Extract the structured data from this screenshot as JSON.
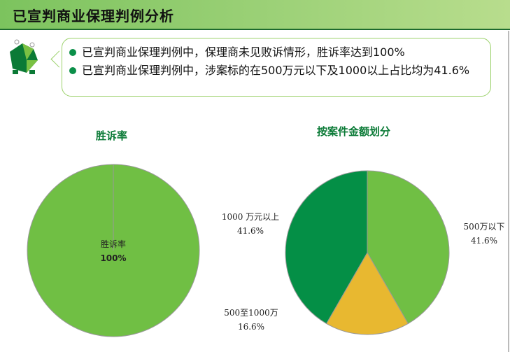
{
  "header": {
    "title": "已宣判商业保理判例分析"
  },
  "bullets": [
    "已宣判商业保理判例中，保理商未见败诉情形，胜诉率达到100%",
    "已宣判商业保理判例中，涉案标的在500万元以下及1000以上占比均为41.6%"
  ],
  "chart_data": [
    {
      "type": "pie",
      "title": "胜诉率",
      "slices": [
        {
          "label": "胜诉率",
          "value": 100,
          "display": "100%",
          "color": "#70bf44"
        }
      ]
    },
    {
      "type": "pie",
      "title": "按案件金额划分",
      "slices": [
        {
          "label": "500万以下",
          "value": 41.6,
          "display": "41.6%",
          "color": "#70bf44"
        },
        {
          "label": "500至1000万",
          "value": 16.6,
          "display": "16.6%",
          "color": "#e8b830"
        },
        {
          "label": "1000 万元以上",
          "value": 41.6,
          "display": "41.6%",
          "color": "#048f46"
        }
      ]
    }
  ]
}
